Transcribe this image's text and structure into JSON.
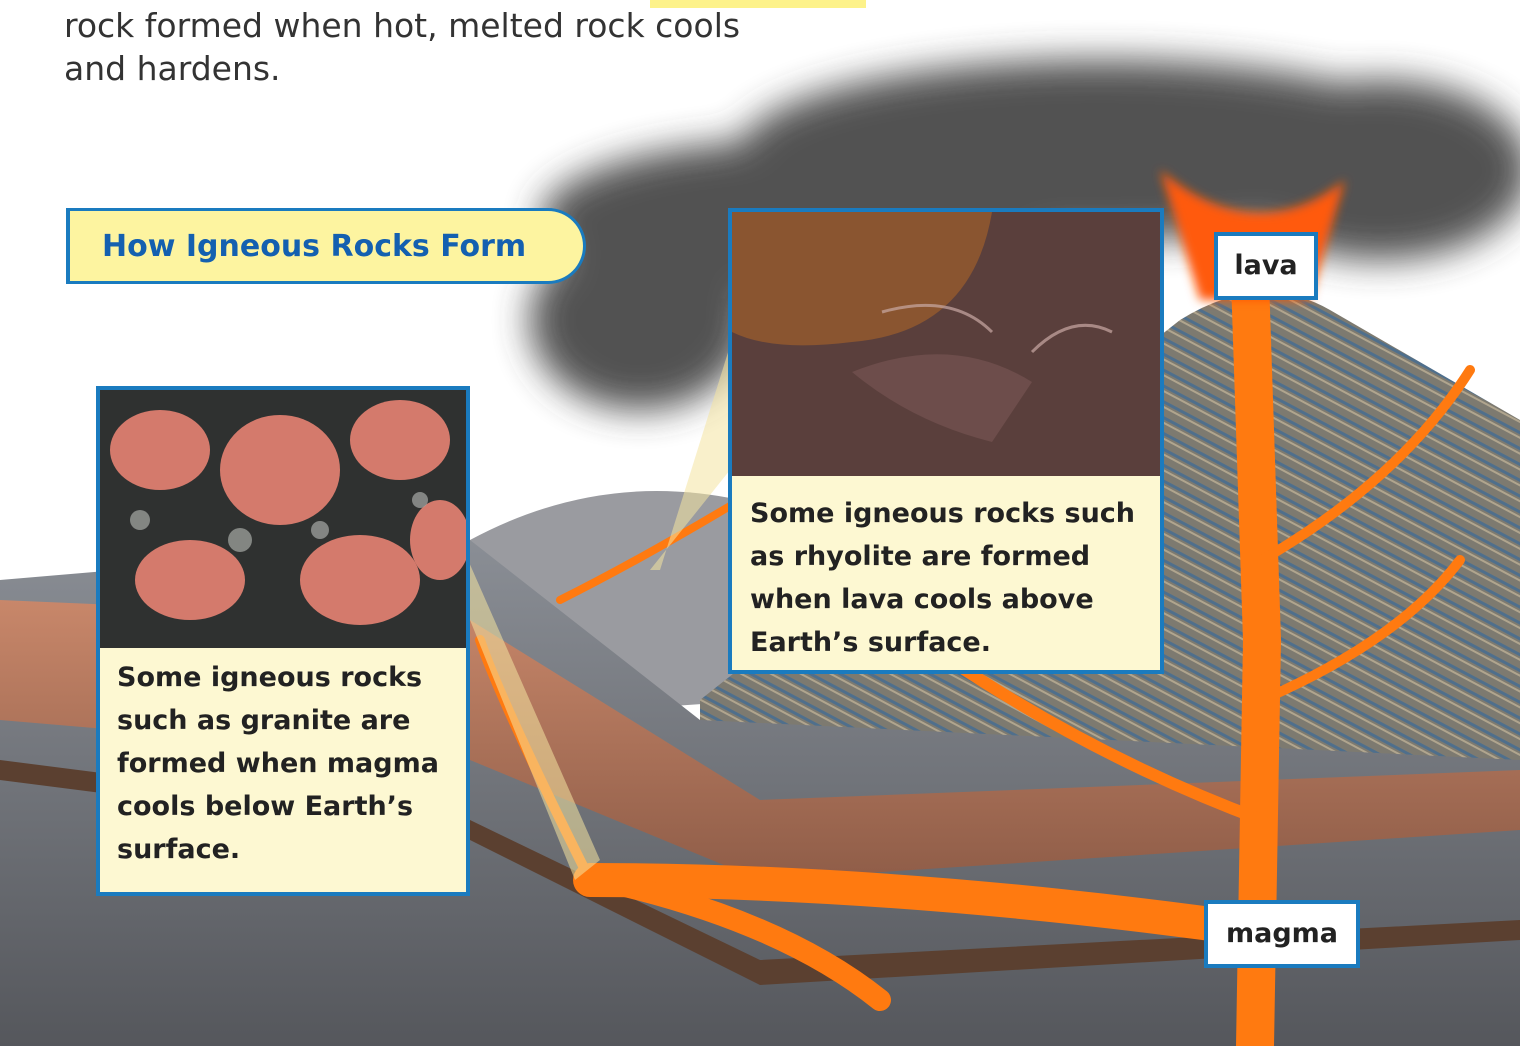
{
  "intro": {
    "lines": [
      "rock formed when hot, melted rock cools",
      "and hardens."
    ]
  },
  "banner": {
    "title": "How Igneous Rocks Form"
  },
  "callouts": [
    {
      "caption_lines": [
        "Some igneous rocks",
        "such as granite are",
        "formed when magma",
        "cools below Earth’s",
        "surface."
      ]
    },
    {
      "caption_lines": [
        "Some igneous rocks such",
        "as rhyolite are formed",
        "when lava cools above",
        "Earth’s surface."
      ]
    }
  ],
  "labels": [
    {
      "text": "lava"
    },
    {
      "text": "magma"
    }
  ]
}
